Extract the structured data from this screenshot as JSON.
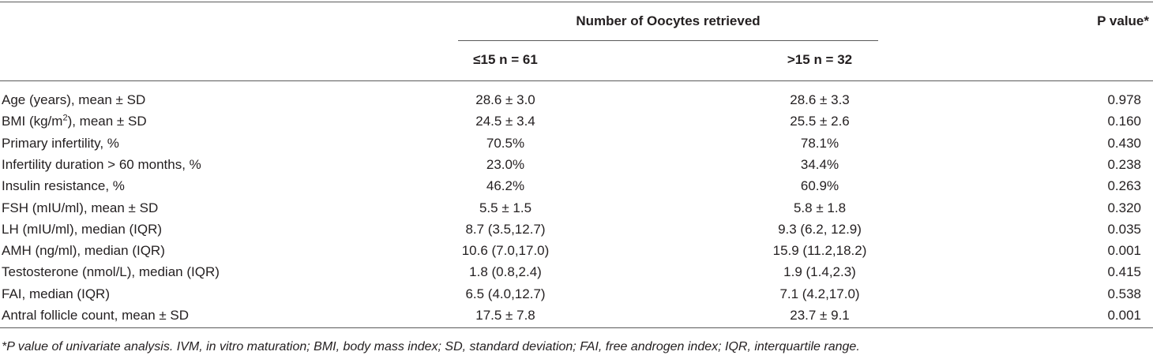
{
  "header": {
    "group": "Number of Oocytes retrieved",
    "p_value": "P value*",
    "columns": [
      "≤15 n = 61",
      ">15 n = 32"
    ]
  },
  "table": {
    "rows": [
      [
        "Age (years), mean ± SD",
        "28.6 ± 3.0",
        "28.6 ± 3.3",
        "0.978"
      ],
      [
        {
          "text": "BMI (kg/m",
          "sup": "2",
          "after": "), mean ± SD"
        },
        "24.5 ± 3.4",
        "25.5 ± 2.6",
        "0.160"
      ],
      [
        "Primary infertility, %",
        "70.5%",
        "78.1%",
        "0.430"
      ],
      [
        "Infertility duration > 60 months, %",
        "23.0%",
        "34.4%",
        "0.238"
      ],
      [
        "Insulin resistance, %",
        "46.2%",
        "60.9%",
        "0.263"
      ],
      [
        "FSH (mIU/ml), mean ± SD",
        "5.5 ± 1.5",
        "5.8 ± 1.8",
        "0.320"
      ],
      [
        "LH (mIU/ml), median (IQR)",
        "8.7 (3.5,12.7)",
        "9.3 (6.2, 12.9)",
        "0.035"
      ],
      [
        "AMH (ng/ml), median (IQR)",
        "10.6 (7.0,17.0)",
        "15.9 (11.2,18.2)",
        "0.001"
      ],
      [
        "Testosterone (nmol/L), median (IQR)",
        "1.8 (0.8,2.4)",
        "1.9 (1.4,2.3)",
        "0.415"
      ],
      [
        "FAI, median (IQR)",
        "6.5 (4.0,12.7)",
        "7.1 (4.2,17.0)",
        "0.538"
      ],
      [
        "Antral follicle count, mean ± SD",
        "17.5 ± 7.8",
        "23.7 ± 9.1",
        "0.001"
      ]
    ]
  },
  "footnote": "*P value of univariate analysis. IVM, in vitro maturation; BMI, body mass index; SD, standard deviation; FAI, free androgen index; IQR, interquartile range."
}
